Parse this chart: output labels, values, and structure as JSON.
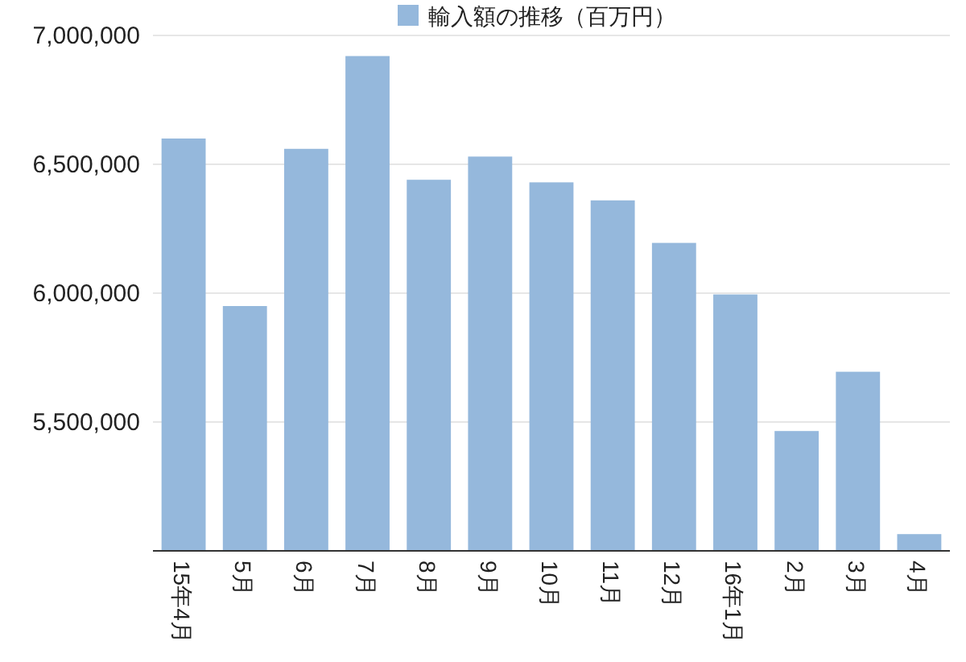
{
  "chart_data": {
    "type": "bar",
    "categories": [
      "15年4月",
      "5月",
      "6月",
      "7月",
      "8月",
      "9月",
      "10月",
      "11月",
      "12月",
      "16年1月",
      "2月",
      "3月",
      "4月"
    ],
    "series": [
      {
        "name": "輸入額の推移（百万円）",
        "color": "#95b8dc",
        "values": [
          6600000,
          5950000,
          6560000,
          6920000,
          6440000,
          6530000,
          6430000,
          6360000,
          6195000,
          5995000,
          5465000,
          5695000,
          5065000
        ]
      }
    ],
    "ylim": [
      5000000,
      7000000
    ],
    "yticks": [
      {
        "value": 5500000,
        "label": "5,500,000"
      },
      {
        "value": 6000000,
        "label": "6,000,000"
      },
      {
        "value": 6500000,
        "label": "6,500,000"
      },
      {
        "value": 7000000,
        "label": "7,000,000"
      }
    ],
    "grid": "y",
    "legend": "top"
  }
}
